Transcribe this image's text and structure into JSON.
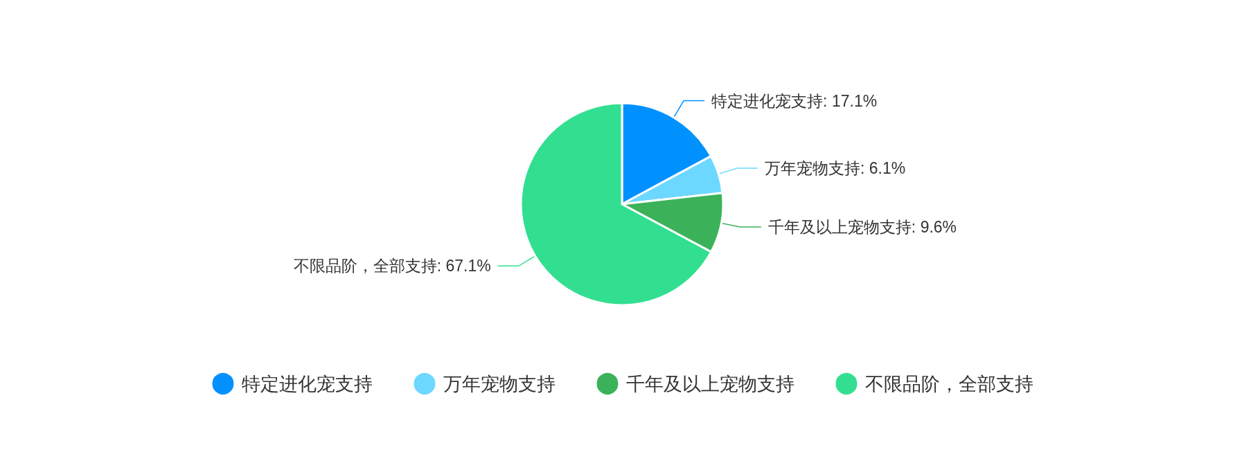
{
  "chart_data": {
    "type": "pie",
    "categories": [
      "特定进化宠支持",
      "万年宠物支持",
      "千年及以上宠物支持",
      "不限品阶，全部支持"
    ],
    "values": [
      17.1,
      6.1,
      9.6,
      67.1
    ],
    "colors": [
      "#0091ff",
      "#6dd8ff",
      "#3bb25a",
      "#32df90"
    ],
    "value_labels": [
      "特定进化宠支持: 17.1%",
      "万年宠物支持: 6.1%",
      "千年及以上宠物支持: 9.6%",
      "不限品阶，全部支持: 67.1%"
    ],
    "legend": "bottom"
  }
}
